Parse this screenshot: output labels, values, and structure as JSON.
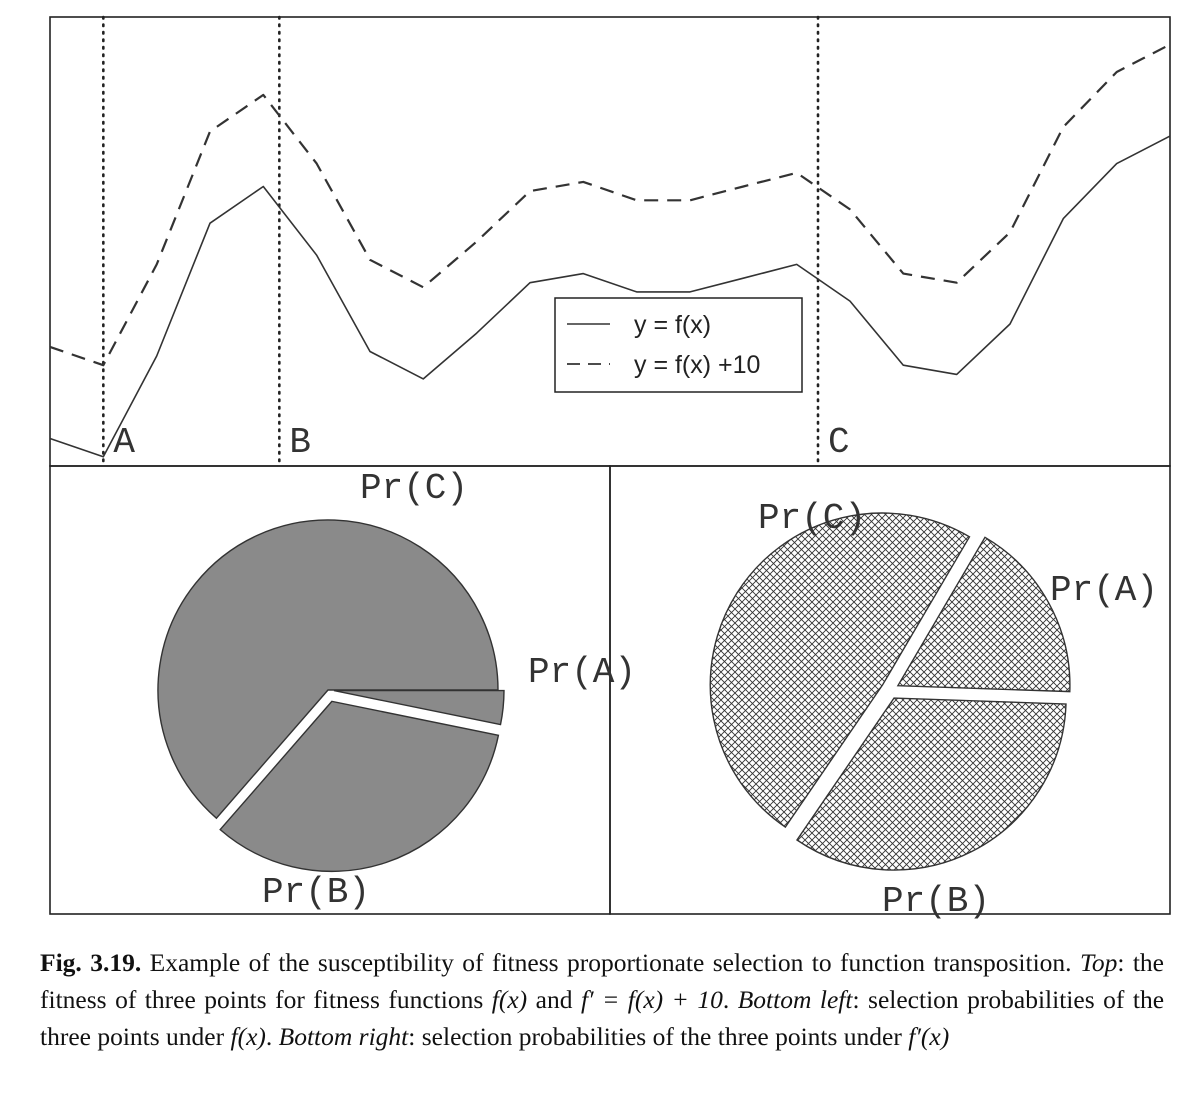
{
  "chart_data": [
    {
      "type": "line",
      "panel": "top",
      "series": [
        {
          "name": "y = f(x)",
          "style": "solid",
          "x": [
            0,
            1,
            2,
            3,
            4,
            5,
            6,
            7,
            8,
            9,
            10,
            11,
            12,
            13,
            14,
            15,
            16,
            17,
            18,
            19,
            20,
            21
          ],
          "y": [
            3,
            1,
            12,
            26.5,
            30.5,
            23,
            12.5,
            9.5,
            14.5,
            20,
            21,
            19,
            19,
            20.5,
            22,
            18,
            11,
            10,
            15.5,
            27,
            33,
            36
          ]
        },
        {
          "name": "y = f(x) +10",
          "style": "dashed",
          "x": [
            0,
            1,
            2,
            3,
            4,
            5,
            6,
            7,
            8,
            9,
            10,
            11,
            12,
            13,
            14,
            15,
            16,
            17,
            18,
            19,
            20,
            21
          ],
          "y": [
            13,
            11,
            22,
            36.5,
            40.5,
            33,
            22.5,
            19.5,
            24.5,
            30,
            31,
            29,
            29,
            30.5,
            32,
            28,
            21,
            20,
            25.5,
            37,
            43,
            46
          ]
        }
      ],
      "markers": [
        {
          "label": "A",
          "x": 1
        },
        {
          "label": "B",
          "x": 4.3
        },
        {
          "label": "C",
          "x": 14.4
        }
      ],
      "xlim": [
        0,
        21
      ],
      "ylim": [
        0,
        49
      ],
      "legend": "center"
    },
    {
      "type": "pie",
      "panel": "bottom-left",
      "fill": "#8a8a8a",
      "slices": [
        {
          "label": "Pr(A)",
          "value": 3.2
        },
        {
          "label": "Pr(B)",
          "value": 63.6
        },
        {
          "label": "Pr(C)",
          "value": 33.2
        }
      ]
    },
    {
      "type": "pie",
      "panel": "bottom-right",
      "fill": "crosshatch",
      "slices": [
        {
          "label": "Pr(A)",
          "value": 17.1
        },
        {
          "label": "Pr(B)",
          "value": 48.9
        },
        {
          "label": "Pr(C)",
          "value": 34.0
        }
      ]
    }
  ],
  "caption": {
    "fig_label": "Fig. 3.19.",
    "part1": " Example of the susceptibility of fitness proportionate selection to function transposition. ",
    "top_label": "Top",
    "part2": ": the fitness of three points for fitness functions ",
    "fx": "f(x)",
    "part3": " and ",
    "fprime_eq": "f′ = f(x) + 10",
    "part4": ". ",
    "bottom_left_label": "Bottom left",
    "part5": ": selection probabilities of the three points under ",
    "fx2": "f(x)",
    "part6": ". ",
    "bottom_right_label": "Bottom right",
    "part7": ": selection probabilities of the three points under ",
    "fprime_x": "f′(x)"
  }
}
